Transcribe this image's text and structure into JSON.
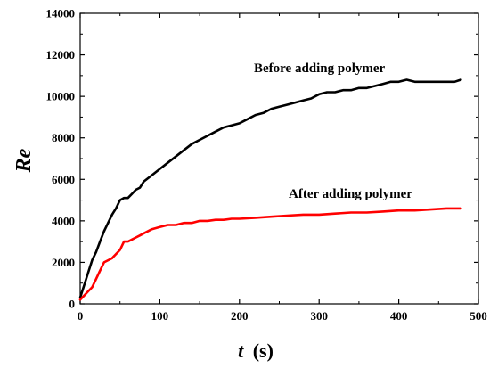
{
  "chart_data": {
    "type": "line",
    "xlabel_var": "t",
    "xlabel_unit": "(s)",
    "ylabel": "Re",
    "xlim": [
      0,
      500
    ],
    "ylim": [
      0,
      14000
    ],
    "xticks": [
      0,
      100,
      200,
      300,
      400,
      500
    ],
    "yticks": [
      0,
      2000,
      4000,
      6000,
      8000,
      10000,
      12000,
      14000
    ],
    "grid": false,
    "series": [
      {
        "name": "Before adding polymer",
        "color": "#000000",
        "x": [
          0,
          5,
          10,
          15,
          20,
          25,
          30,
          35,
          40,
          45,
          50,
          55,
          60,
          65,
          70,
          75,
          80,
          90,
          100,
          110,
          120,
          130,
          140,
          150,
          160,
          170,
          180,
          190,
          200,
          210,
          220,
          230,
          240,
          250,
          260,
          270,
          280,
          290,
          300,
          310,
          320,
          330,
          340,
          350,
          360,
          370,
          380,
          390,
          400,
          410,
          420,
          430,
          440,
          450,
          460,
          470,
          478
        ],
        "y": [
          300,
          900,
          1500,
          2100,
          2500,
          3000,
          3500,
          3900,
          4300,
          4600,
          5000,
          5100,
          5100,
          5300,
          5500,
          5600,
          5900,
          6200,
          6500,
          6800,
          7100,
          7400,
          7700,
          7900,
          8100,
          8300,
          8500,
          8600,
          8700,
          8900,
          9100,
          9200,
          9400,
          9500,
          9600,
          9700,
          9800,
          9900,
          10100,
          10200,
          10200,
          10300,
          10300,
          10400,
          10400,
          10500,
          10600,
          10700,
          10700,
          10800,
          10700,
          10700,
          10700,
          10700,
          10700,
          10700,
          10800
        ]
      },
      {
        "name": "After adding polymer",
        "color": "#ff0000",
        "x": [
          0,
          5,
          10,
          15,
          20,
          25,
          30,
          35,
          40,
          45,
          50,
          55,
          60,
          65,
          70,
          75,
          80,
          90,
          100,
          110,
          120,
          130,
          140,
          150,
          160,
          170,
          180,
          190,
          200,
          220,
          240,
          260,
          280,
          300,
          320,
          340,
          360,
          380,
          400,
          420,
          440,
          460,
          478
        ],
        "y": [
          200,
          400,
          600,
          800,
          1200,
          1600,
          2000,
          2100,
          2200,
          2400,
          2600,
          3000,
          3000,
          3100,
          3200,
          3300,
          3400,
          3600,
          3700,
          3800,
          3800,
          3900,
          3900,
          4000,
          4000,
          4050,
          4050,
          4100,
          4100,
          4150,
          4200,
          4250,
          4300,
          4300,
          4350,
          4400,
          4400,
          4450,
          4500,
          4500,
          4550,
          4600,
          4600
        ]
      }
    ]
  }
}
